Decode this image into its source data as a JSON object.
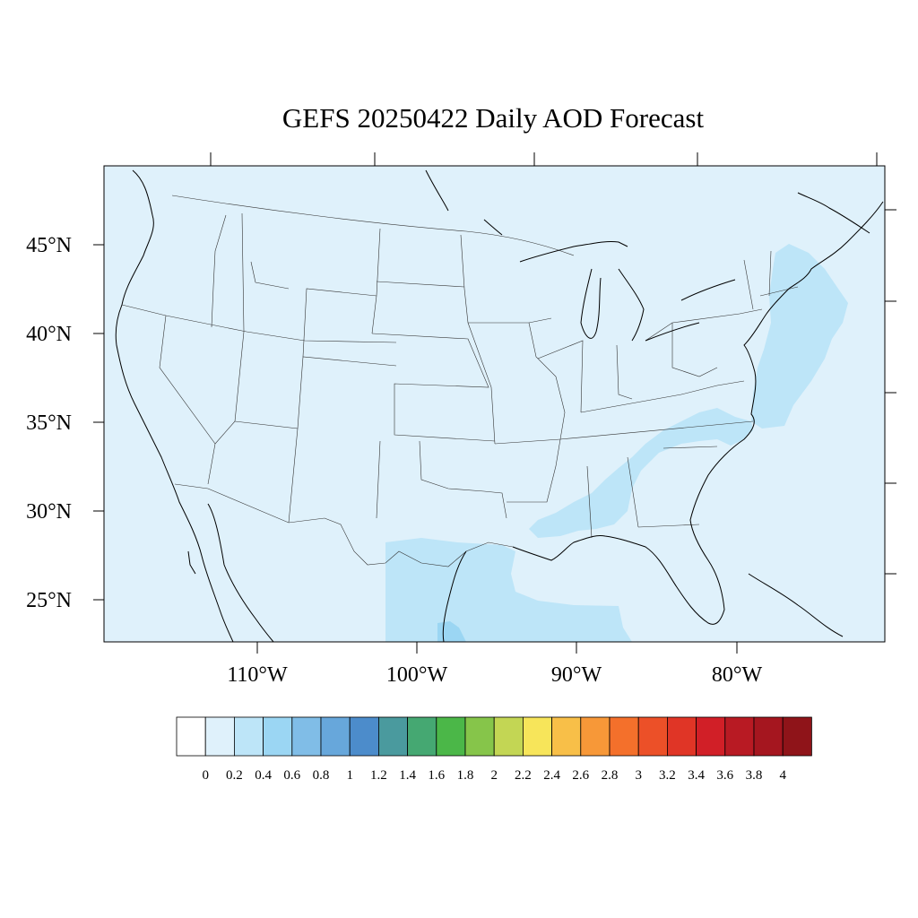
{
  "title": "GEFS 20250422 Daily AOD Forecast",
  "map": {
    "lat_labels": [
      "45°N",
      "40°N",
      "35°N",
      "30°N",
      "25°N"
    ],
    "lon_labels": [
      "110°W",
      "100°W",
      "90°W",
      "80°W"
    ],
    "background_color": "#dff1fb",
    "aod_0_2_0_4_color": "#bde5f8",
    "aod_0_4_0_6_color": "#9bd6f3"
  },
  "colorbar": {
    "labels": [
      "0",
      "0.2",
      "0.4",
      "0.6",
      "0.8",
      "1",
      "1.2",
      "1.4",
      "1.6",
      "1.8",
      "2",
      "2.2",
      "2.4",
      "2.6",
      "2.8",
      "3",
      "3.2",
      "3.4",
      "3.6",
      "3.8",
      "4"
    ],
    "colors": [
      "#ffffff",
      "#dff1fb",
      "#bde5f8",
      "#9bd6f3",
      "#80bde7",
      "#67a7db",
      "#4c8ccb",
      "#4a9a9e",
      "#45a872",
      "#4bb748",
      "#86c54a",
      "#c3d654",
      "#f7e55a",
      "#f8bf48",
      "#f79838",
      "#f4702b",
      "#ec5028",
      "#e03526",
      "#d11f27",
      "#b81a23",
      "#a5161f",
      "#8f1419"
    ]
  }
}
